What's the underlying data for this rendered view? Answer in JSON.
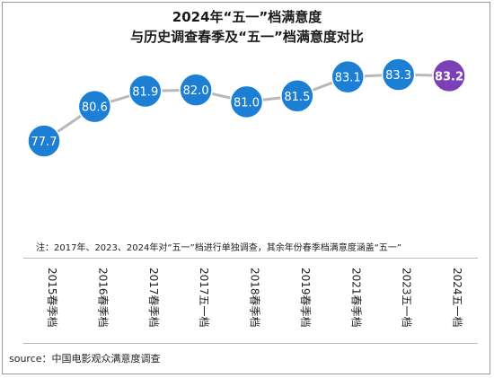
{
  "header": {
    "title_line1": "2024年“五一”档满意度",
    "title_line2": "与历史调查春季及“五一”档满意度对比"
  },
  "chart_data": {
    "type": "line",
    "categories": [
      "2015春季档",
      "2016春季档",
      "2017春季档",
      "2017五一档",
      "2018春季档",
      "2019春季档",
      "2021春季档",
      "2023五一档",
      "2024五一档"
    ],
    "values": [
      77.7,
      80.6,
      81.9,
      82.0,
      81.0,
      81.5,
      83.1,
      83.3,
      83.2
    ],
    "value_labels": [
      "77.7",
      "80.6",
      "81.9",
      "82.0",
      "81.0",
      "81.5",
      "83.1",
      "83.3",
      "83.2"
    ],
    "highlight_index": 8,
    "colors": {
      "normal": "#1c7fd4",
      "highlight": "#7b3fb6",
      "line": "#b8b8b8"
    },
    "grid": false,
    "legend": "none"
  },
  "note": "注：2017年、2023、2024年对“五一”档进行单独调查，其余年份春季档满意度涵盖“五一”",
  "source": "source：中国电影观众满意度调查"
}
